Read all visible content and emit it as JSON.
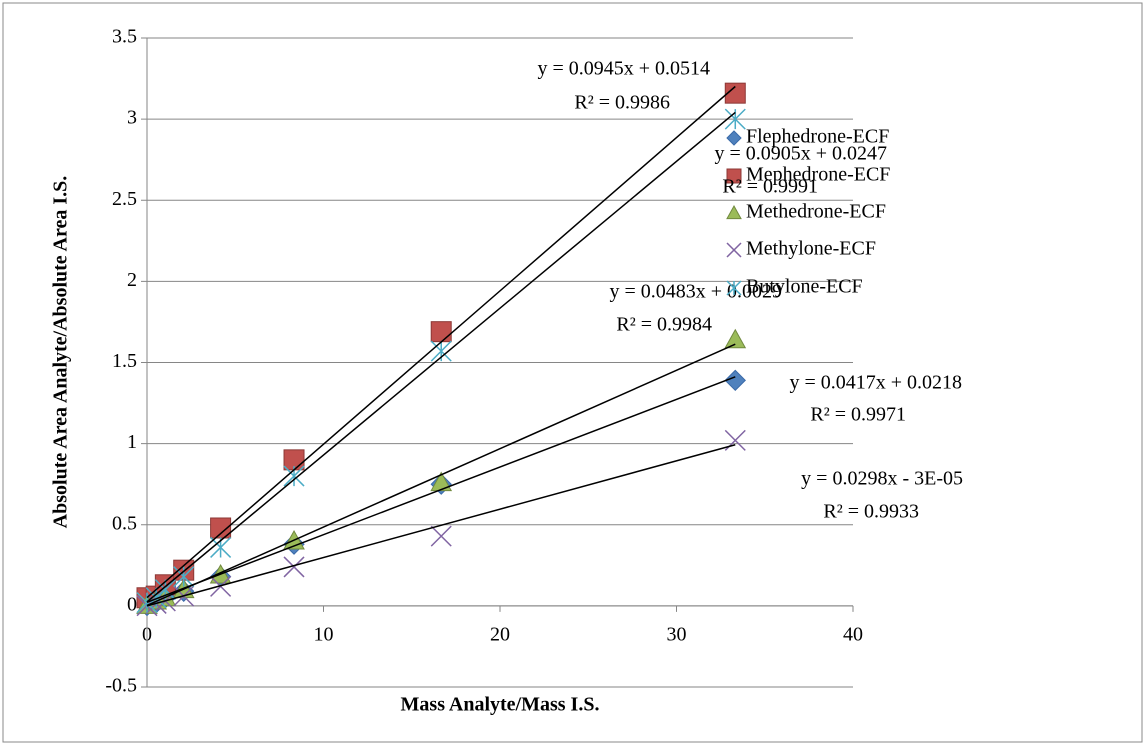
{
  "chart_data": {
    "type": "scatter",
    "x_label": "Mass Analyte/Mass I.S.",
    "y_label": "Absolute Area Analyte/Absolute Area I.S.",
    "x": [
      0,
      0.52,
      1.04,
      2.08,
      4.17,
      8.33,
      16.67,
      33.33
    ],
    "xlim": [
      0,
      40
    ],
    "xticks": [
      0,
      10,
      20,
      30,
      40
    ],
    "ylim": [
      -0.5,
      3.5
    ],
    "yticks": [
      -0.5,
      0,
      0.5,
      1,
      1.5,
      2,
      2.5,
      3,
      3.5
    ],
    "grid": true,
    "legend": "right",
    "series": [
      {
        "name": "Flephedrone-ECF",
        "color": "#4f81bd",
        "marker": "diamond",
        "values": [
          0.002,
          0.02,
          0.05,
          0.09,
          0.18,
          0.38,
          0.75,
          1.39
        ],
        "trendline": {
          "slope": 0.0417,
          "intercept": 0.0218,
          "equation": "y = 0.0417x + 0.0218",
          "r2": "R² = 0.9971"
        }
      },
      {
        "name": "Mephedrone-ECF",
        "color": "#c0504d",
        "marker": "square",
        "values": [
          0.05,
          0.06,
          0.13,
          0.22,
          0.48,
          0.9,
          1.69,
          3.16
        ],
        "trendline": {
          "slope": 0.0945,
          "intercept": 0.0514,
          "equation": "y = 0.0945x + 0.0514",
          "r2": "R² = 0.9986"
        }
      },
      {
        "name": "Methedrone-ECF",
        "color": "#9bbb59",
        "marker": "triangle",
        "values": [
          0.003,
          0.03,
          0.05,
          0.1,
          0.19,
          0.4,
          0.76,
          1.64
        ],
        "trendline": {
          "slope": 0.0483,
          "intercept": 0.0029,
          "equation": "y = 0.0483x + 0.0029",
          "r2": "R² = 0.9984"
        }
      },
      {
        "name": "Methylone-ECF",
        "color": "#8064a2",
        "marker": "x",
        "values": [
          0.001,
          0.015,
          0.03,
          0.06,
          0.12,
          0.24,
          0.43,
          1.02
        ],
        "trendline": {
          "slope": 0.0298,
          "intercept": -3e-05,
          "equation": "y = 0.0298x - 3E-05",
          "r2": "R² = 0.9933"
        }
      },
      {
        "name": "Butylone-ECF",
        "color": "#4bacc6",
        "marker": "star",
        "values": [
          0.02,
          0.05,
          0.1,
          0.18,
          0.36,
          0.8,
          1.57,
          3.0
        ],
        "trendline": {
          "slope": 0.0905,
          "intercept": 0.0247,
          "equation": "y = 0.0905x + 0.0247",
          "r2": "R² = 0.9991"
        }
      }
    ]
  }
}
